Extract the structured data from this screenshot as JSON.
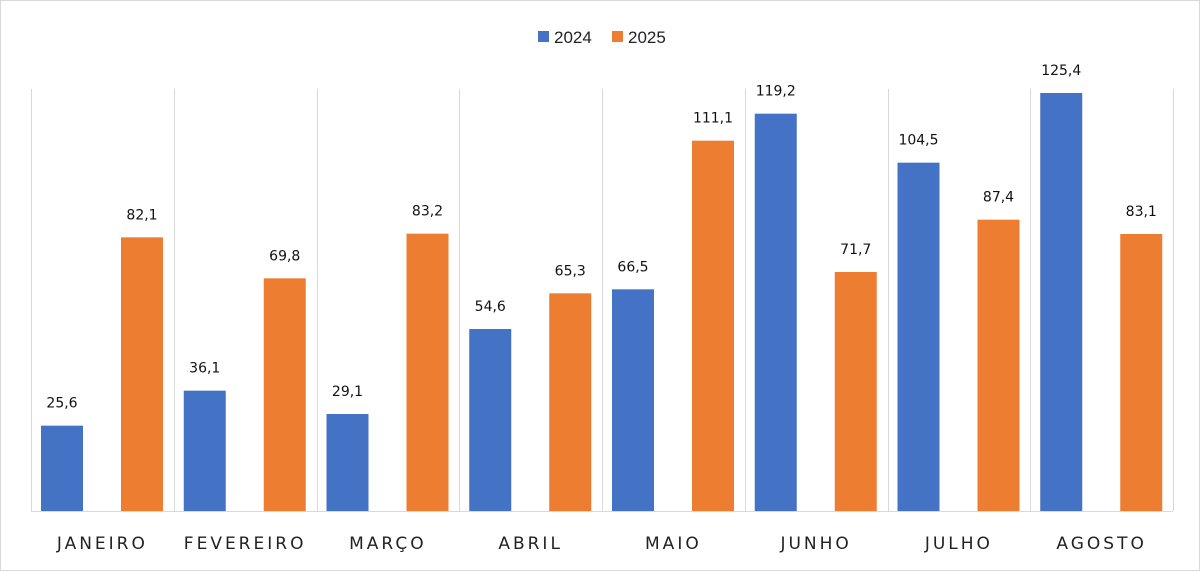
{
  "chart_data": {
    "type": "bar",
    "categories": [
      "JANEIRO",
      "FEVEREIRO",
      "MARÇO",
      "ABRIL",
      "MAIO",
      "JUNHO",
      "JULHO",
      "AGOSTO"
    ],
    "series": [
      {
        "name": "2024",
        "color": "#4472C4",
        "values": [
          25.6,
          36.1,
          29.1,
          54.6,
          66.5,
          119.2,
          104.5,
          125.4
        ],
        "labels": [
          "25,6",
          "36,1",
          "29,1",
          "54,6",
          "66,5",
          "119,2",
          "104,5",
          "125,4"
        ]
      },
      {
        "name": "2025",
        "color": "#ED7D31",
        "values": [
          82.1,
          69.8,
          83.2,
          65.3,
          111.1,
          71.7,
          87.4,
          83.1
        ],
        "labels": [
          "82,1",
          "69,8",
          "83,2",
          "65,3",
          "111,1",
          "71,7",
          "87,4",
          "83,1"
        ]
      }
    ],
    "ylim": [
      0,
      130
    ],
    "grid": "vertical category separators",
    "legend": "top-center",
    "data_labels": true
  }
}
